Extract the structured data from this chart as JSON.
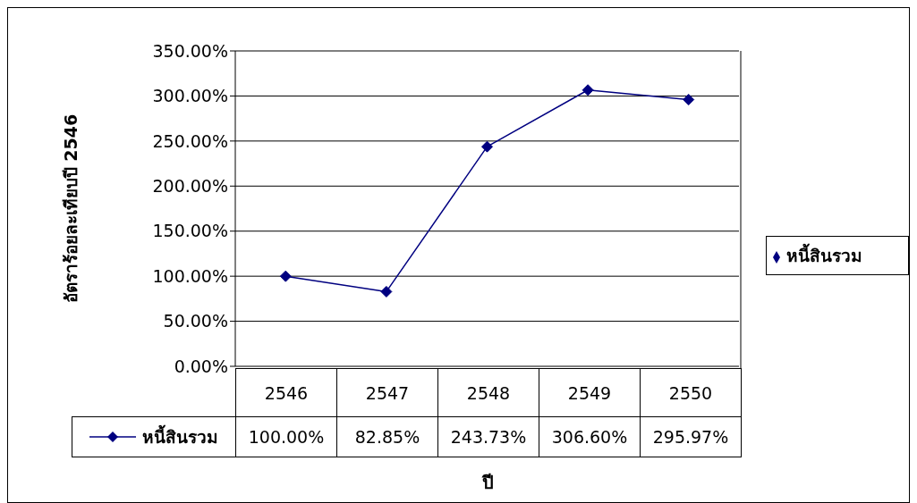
{
  "chart_data": {
    "type": "line",
    "ylabel": "อัตราร้อยละเทียบปี 2546",
    "xlabel": "ปี",
    "categories": [
      "2546",
      "2547",
      "2548",
      "2549",
      "2550"
    ],
    "series": [
      {
        "name": "หนี้สินรวม",
        "color": "#000080",
        "values": [
          100,
          82.85,
          243.73,
          306.6,
          295.97
        ],
        "value_labels": [
          "100.00%",
          "82.85%",
          "243.73%",
          "306.60%",
          "295.97%"
        ]
      }
    ],
    "ylim": [
      0,
      350
    ],
    "yticks": [
      {
        "value": 0,
        "label": "0.00%"
      },
      {
        "value": 50,
        "label": "50.00%"
      },
      {
        "value": 100,
        "label": "100.00%"
      },
      {
        "value": 150,
        "label": "150.00%"
      },
      {
        "value": 200,
        "label": "200.00%"
      },
      {
        "value": 250,
        "label": "250.00%"
      },
      {
        "value": 300,
        "label": "300.00%"
      },
      {
        "value": 350,
        "label": "350.00%"
      }
    ],
    "grid": "y",
    "legend": "right",
    "marker": "diamond",
    "line_style": "solid"
  }
}
